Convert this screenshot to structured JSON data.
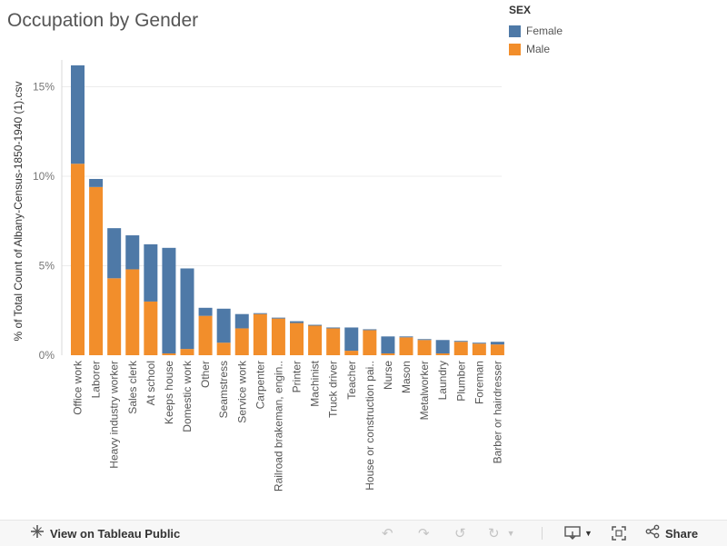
{
  "title": "Occupation by Gender",
  "legend": {
    "title": "SEX",
    "items": [
      {
        "label": "Female",
        "color": "#4e79a7"
      },
      {
        "label": "Male",
        "color": "#f28e2b"
      }
    ]
  },
  "chart_data": {
    "type": "bar",
    "stacked": true,
    "ylabel": "% of Total Count of Albany-Census-1850-1940 (1).csv",
    "xlabel": "",
    "ylim": [
      0,
      16.5
    ],
    "yticks": [
      0,
      5,
      10,
      15
    ],
    "ytick_labels": [
      "0%",
      "5%",
      "10%",
      "15%"
    ],
    "grid": true,
    "legend_position": "top-right",
    "categories": [
      "Office work",
      "Laborer",
      "Heavy industry worker",
      "Sales clerk",
      "At school",
      "Keeps house",
      "Domestic work",
      "Other",
      "Seamstress",
      "Service work",
      "Carpenter",
      "Railroad brakeman, engin..",
      "Printer",
      "Machinist",
      "Truck driver",
      "Teacher",
      "House or construction pai..",
      "Nurse",
      "Mason",
      "Metalworker",
      "Laundry",
      "Plumber",
      "Foreman",
      "Barber or hairdresser"
    ],
    "series": [
      {
        "name": "Male",
        "color": "#f28e2b",
        "values": [
          10.7,
          9.4,
          4.3,
          4.8,
          3.0,
          0.1,
          0.35,
          2.2,
          0.7,
          1.5,
          2.3,
          2.05,
          1.8,
          1.65,
          1.5,
          0.25,
          1.4,
          0.1,
          1.0,
          0.85,
          0.1,
          0.75,
          0.65,
          0.6
        ]
      },
      {
        "name": "Female",
        "color": "#4e79a7",
        "values": [
          5.5,
          0.45,
          2.8,
          1.9,
          3.2,
          5.9,
          4.5,
          0.45,
          1.9,
          0.8,
          0.05,
          0.05,
          0.1,
          0.05,
          0.05,
          1.3,
          0.05,
          0.95,
          0.05,
          0.05,
          0.75,
          0.05,
          0.05,
          0.15
        ]
      }
    ]
  },
  "toolbar": {
    "view_label": "View on Tableau Public",
    "share_label": "Share",
    "icons": [
      "tableau-icon",
      "undo-icon",
      "redo-icon",
      "revert-icon",
      "refresh-icon",
      "download-icon",
      "fullscreen-icon",
      "share-icon"
    ]
  }
}
